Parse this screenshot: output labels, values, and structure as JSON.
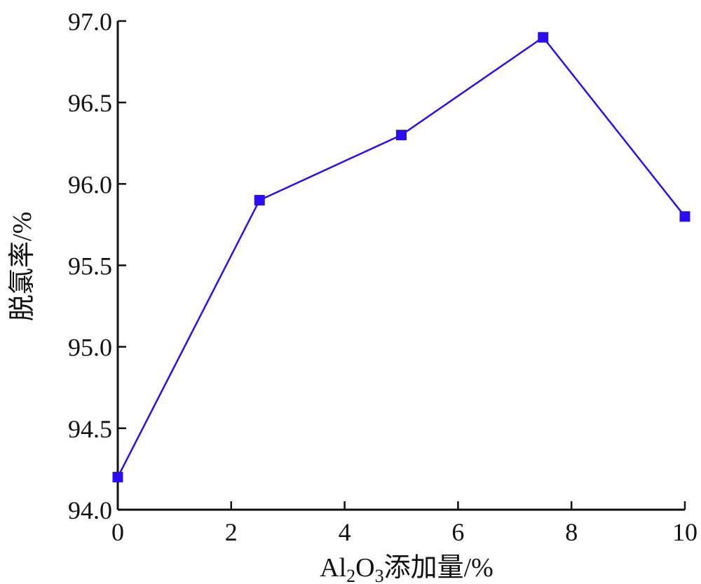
{
  "chart_data": {
    "type": "line",
    "title": "",
    "xlabel_parts": {
      "a": "Al",
      "sub1": "2",
      "b": "O",
      "sub2": "3",
      "c": "添加量/%"
    },
    "ylabel": "脱氯率/%",
    "xlim": [
      0,
      10
    ],
    "ylim": [
      94.0,
      97.0
    ],
    "xticks": [
      "0",
      "2",
      "4",
      "6",
      "8",
      "10"
    ],
    "yticks": [
      "94.0",
      "94.5",
      "95.0",
      "95.5",
      "96.0",
      "96.5",
      "97.0"
    ],
    "grid": false,
    "series": [
      {
        "x": [
          0,
          2.5,
          5,
          7.5,
          10
        ],
        "y": [
          94.2,
          95.9,
          96.3,
          96.9,
          95.8
        ],
        "color": "#2a0df0",
        "marker": "square"
      }
    ]
  }
}
